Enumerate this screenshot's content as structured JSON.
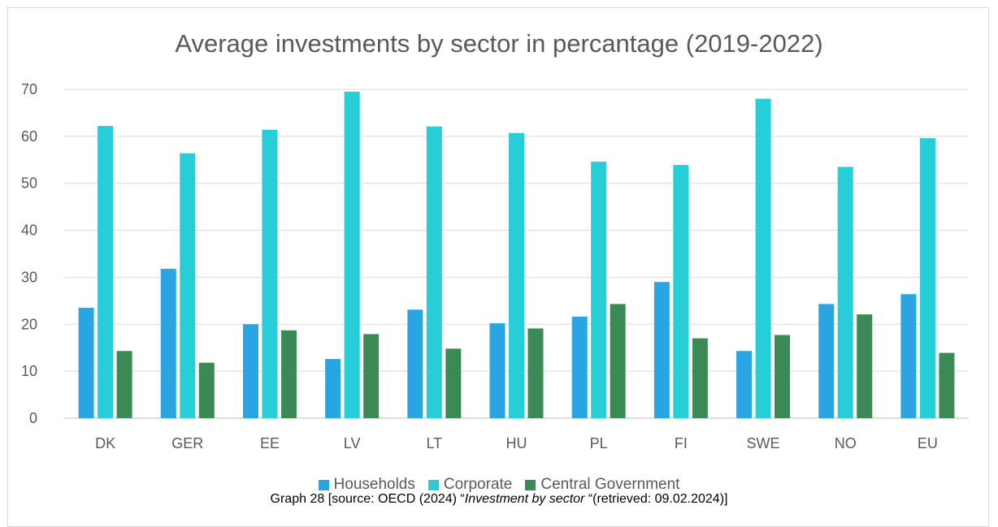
{
  "chart_data": {
    "type": "bar",
    "title": "Average investments by sector in percantage (2019-2022)",
    "categories": [
      "DK",
      "GER",
      "EE",
      "LV",
      "LT",
      "HU",
      "PL",
      "FI",
      "SWE",
      "NO",
      "EU"
    ],
    "series": [
      {
        "name": "Households",
        "color": "#2aa5e3",
        "values": [
          23.5,
          31.8,
          20.0,
          12.6,
          23.1,
          20.2,
          21.6,
          29.0,
          14.3,
          24.3,
          26.4
        ]
      },
      {
        "name": "Corporate",
        "color": "#27ced7",
        "values": [
          62.2,
          56.4,
          61.4,
          69.5,
          62.1,
          60.7,
          54.6,
          53.9,
          68.0,
          53.5,
          59.6
        ]
      },
      {
        "name": "Central Government",
        "color": "#3b8a55",
        "values": [
          14.3,
          11.8,
          18.7,
          17.9,
          14.8,
          19.1,
          24.3,
          17.0,
          17.7,
          22.1,
          13.9
        ]
      }
    ],
    "ylim": [
      0,
      70
    ],
    "yticks": [
      0,
      10,
      20,
      30,
      40,
      50,
      60,
      70
    ],
    "xlabel": "",
    "ylabel": "",
    "grid": true,
    "legend": "bottom"
  },
  "caption": {
    "prefix": "Graph 28 [source: OECD (2024) “",
    "italic": "Investment by sector",
    "suffix": " “(retrieved: 09.02.2024)]"
  }
}
